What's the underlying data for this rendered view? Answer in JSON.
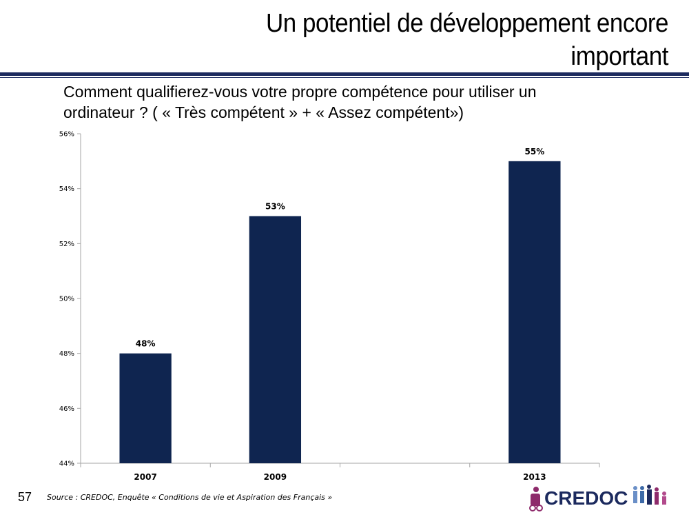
{
  "slide": {
    "title_line1": "Un potentiel de développement encore",
    "title_line2": "important",
    "question_line1": "Comment qualifierez-vous votre propre compétence pour utiliser un",
    "question_line2": "ordinateur ? ( « Très compétent » +  « Assez compétent»)",
    "page_number": "57",
    "source": "Source : CREDOC, Enquête « Conditions de vie et Aspiration des Français »",
    "logo_text": "CREDOC"
  },
  "colors": {
    "bar": "#0f2550",
    "rule": "#1c2a5e",
    "axis": "#a6a6a6"
  },
  "chart_data": {
    "type": "bar",
    "categories": [
      "2007",
      "2009",
      "",
      "2013"
    ],
    "values": [
      48,
      53,
      null,
      55
    ],
    "value_labels": [
      "48%",
      "53%",
      "",
      "55%"
    ],
    "ylim": [
      44,
      56
    ],
    "yticks": [
      44,
      46,
      48,
      50,
      52,
      54,
      56
    ],
    "ytick_labels": [
      "44%",
      "46%",
      "48%",
      "50%",
      "52%",
      "54%",
      "56%"
    ],
    "xlabel": "",
    "ylabel": "",
    "grid": false
  }
}
